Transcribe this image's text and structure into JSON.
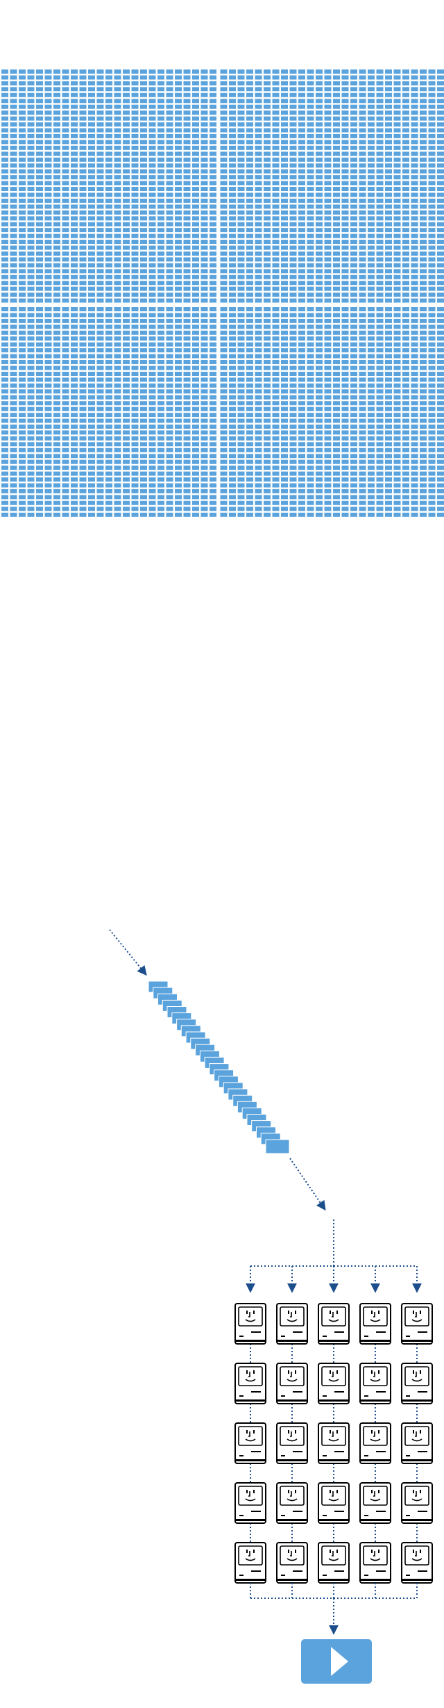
{
  "diagram": {
    "type": "process-flow",
    "stages": [
      {
        "name": "tiles",
        "count": 3876
      },
      {
        "name": "stacked-cards",
        "count": 26
      },
      {
        "name": "computers",
        "rows": 5,
        "columns": 5
      }
    ],
    "colors": {
      "tile": "#5ba3dd",
      "arrow": "#1d4e8c",
      "computer_outline": "#000000",
      "play_button": "#5ba3dd",
      "play_icon": "#ffffff"
    },
    "icons": [
      "computer-face-icon",
      "play-icon"
    ]
  }
}
